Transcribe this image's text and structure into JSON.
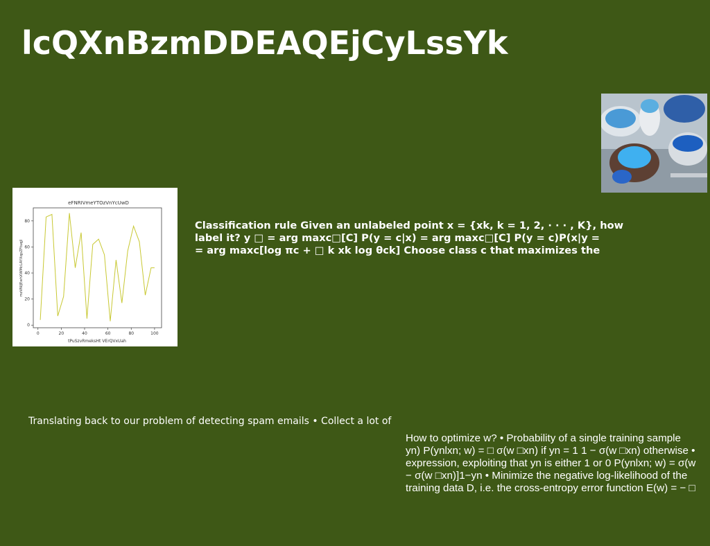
{
  "page": {
    "title": "lcQXnBzmDDEAQEjCyLssYk",
    "background": "#3e5816"
  },
  "photo": {
    "icon": "food-photo"
  },
  "bold_paragraph": {
    "lines": [
      "Classification rule Given an unlabeled point x = {xk, k = 1, 2, · · · , K}, how",
      "label it? y □ = arg maxc□[C] P(y = c|x) = arg maxc□[C] P(y = c)P(x|y =",
      "= arg maxc[log πc + □ k xk log θck] Choose class c that maximizes the"
    ]
  },
  "light_paragraph": {
    "text": "Translating back to our problem of detecting spam emails • Collect a lot of"
  },
  "right_paragraph": {
    "lines": [
      "How to optimize w? • Probability of a single training sample",
      "yn) P(ynlxn; w) = □ σ(w □xn) if yn = 1 1 − σ(w □xn) otherwise •",
      "expression, exploiting that yn is either 1 or 0 P(ynlxn; w) = σ(w",
      "− σ(w □xn)]1−yn • Minimize the negative log-likelihood of the",
      "training data D, i.e. the cross-entropy error function E(w) = − □"
    ]
  },
  "chart_data": {
    "type": "line",
    "title": "eFNRIVmeYTOzVnYcUwD",
    "xlabel": "tPuSzvRmeksHt VErQVxUah",
    "ylabel": "mzVNIJEwhXWMcLAYXqpZFtuqjl",
    "x": [
      2,
      7,
      12,
      17,
      22,
      27,
      32,
      37,
      42,
      47,
      52,
      57,
      62,
      67,
      72,
      77,
      82,
      87,
      92,
      97,
      100
    ],
    "series": [
      {
        "values": [
          4,
          83,
          85,
          7,
          22,
          86,
          44,
          71,
          5,
          62,
          66,
          54,
          3,
          50,
          17,
          57,
          76,
          64,
          23,
          44,
          44
        ]
      }
    ],
    "xticks": [
      "0",
      "20",
      "40",
      "60",
      "80",
      "100"
    ],
    "xtick_values": [
      0,
      20,
      40,
      60,
      80,
      100
    ],
    "yticks": [
      "0",
      "20",
      "40",
      "60",
      "80"
    ],
    "ytick_values": [
      0,
      20,
      40,
      60,
      80
    ],
    "xlim": [
      -4,
      106
    ],
    "ylim": [
      -2,
      90
    ],
    "line_color": "#c8c832",
    "grid": false
  }
}
